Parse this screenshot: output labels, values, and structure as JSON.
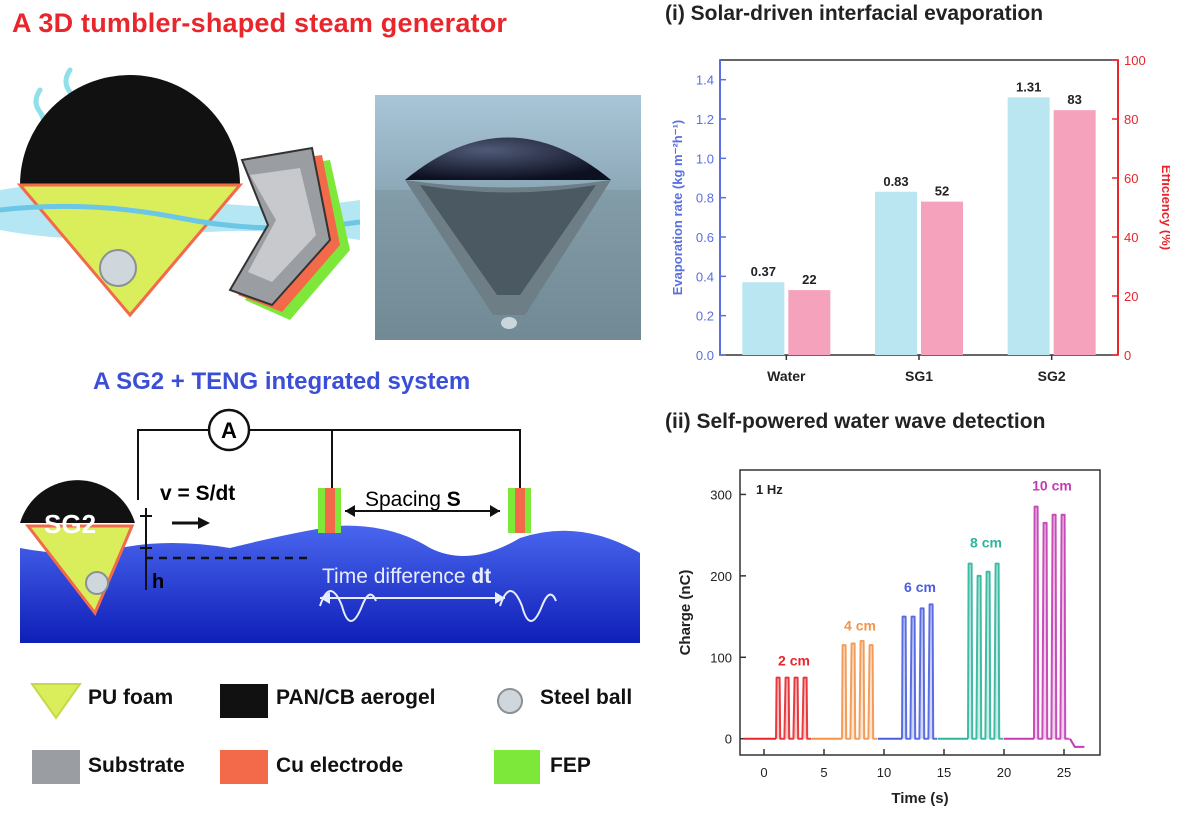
{
  "figure": {
    "left_title": "A 3D tumbler-shaped steam generator",
    "system_title": "A SG2 + TENG integrated system",
    "panel1_title": "(i) Solar-driven interfacial evaporation",
    "panel2_title": "(ii) Self-powered  water wave detection"
  },
  "diagram": {
    "ammeter": "A",
    "sg_label": "SG2",
    "velocity": "v = S/dt",
    "spacing_text": "Spacing ",
    "spacing_var": "S",
    "height": "h",
    "time_diff_text": "Time difference ",
    "time_diff_var": "dt"
  },
  "legend": [
    {
      "label": "PU foam",
      "color": "#d9ee5a"
    },
    {
      "label": "PAN/CB aerogel",
      "color": "#111111"
    },
    {
      "label": "Steel ball",
      "color": "#c8cfd6"
    },
    {
      "label": "Substrate",
      "color": "#9a9ea3"
    },
    {
      "label": "Cu electrode",
      "color": "#f26a4a"
    },
    {
      "label": "FEP",
      "color": "#7ee83a"
    }
  ],
  "chart_data": [
    {
      "type": "bar",
      "categories": [
        "Water",
        "SG1",
        "SG2"
      ],
      "series": [
        {
          "name": "Evaporation rate",
          "values": [
            0.37,
            0.83,
            1.31
          ],
          "color": "#b9e6f0"
        },
        {
          "name": "Efficiency",
          "values": [
            22,
            52,
            83
          ],
          "color": "#f5a3bd"
        }
      ],
      "data_labels_left": [
        "0.37",
        "0.83",
        "1.31"
      ],
      "data_labels_right": [
        "22",
        "52",
        "83"
      ],
      "ylabel": "Evaporation rate (kg m⁻²h⁻¹)",
      "ylabel2": "Efficiency (%)",
      "ylim": [
        0,
        1.5
      ],
      "ylim2": [
        0,
        100
      ],
      "yticks": [
        "0.0",
        "0.2",
        "0.4",
        "0.6",
        "0.8",
        "1.0",
        "1.2",
        "1.4"
      ],
      "yticks2": [
        "0",
        "20",
        "40",
        "60",
        "80",
        "100"
      ],
      "left_axis_color": "#5a6fe0",
      "right_axis_color": "#e8262c"
    },
    {
      "type": "line",
      "annotation": "1 Hz",
      "xlabel": "Time (s)",
      "ylabel": "Charge (nC)",
      "xlim": [
        -2,
        28
      ],
      "ylim": [
        -20,
        330
      ],
      "xticks": [
        "0",
        "5",
        "10",
        "15",
        "20",
        "25"
      ],
      "yticks": [
        "0",
        "100",
        "200",
        "300"
      ],
      "groups": [
        {
          "name": "2 cm",
          "color": "#e8262c",
          "t_start": 1.0,
          "peaks": [
            75,
            75,
            75,
            75
          ],
          "label_y": 90
        },
        {
          "name": "4 cm",
          "color": "#f2944a",
          "t_start": 6.5,
          "peaks": [
            115,
            117,
            120,
            115
          ],
          "label_y": 133
        },
        {
          "name": "6 cm",
          "color": "#4a5ee0",
          "t_start": 11.5,
          "peaks": [
            150,
            150,
            160,
            165
          ],
          "label_y": 180
        },
        {
          "name": "8 cm",
          "color": "#2bb59a",
          "t_start": 17.0,
          "peaks": [
            215,
            200,
            205,
            215
          ],
          "label_y": 235
        },
        {
          "name": "10 cm",
          "color": "#c23bb3",
          "t_start": 22.5,
          "peaks": [
            285,
            265,
            275,
            275
          ],
          "label_y": 305
        }
      ],
      "tail_dip": -10
    }
  ]
}
